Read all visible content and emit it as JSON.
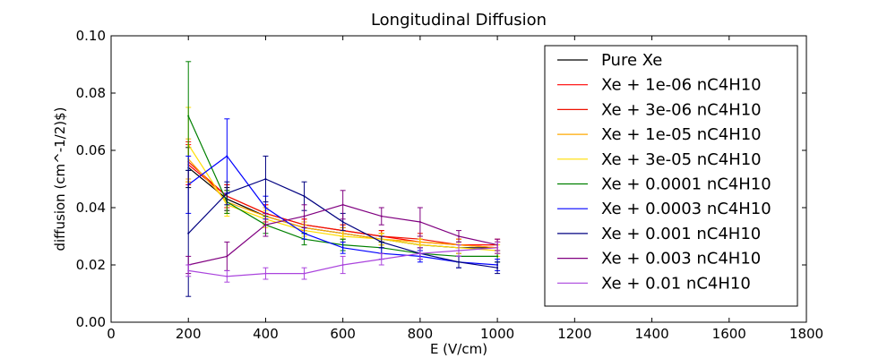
{
  "chart_data": {
    "type": "line",
    "title": "Longitudinal Diffusion",
    "xlabel": "E (V/cm)",
    "ylabel": "diffusion (cm^-1/2)$)",
    "xlim": [
      0,
      1800
    ],
    "ylim": [
      0.0,
      0.1
    ],
    "xticks": [
      "0",
      "200",
      "400",
      "600",
      "800",
      "1000",
      "1200",
      "1400",
      "1600",
      "1800"
    ],
    "yticks": [
      "0.00",
      "0.02",
      "0.04",
      "0.06",
      "0.08",
      "0.10"
    ],
    "grid": false,
    "legend_position": "top-right",
    "x": [
      200,
      300,
      400,
      500,
      600,
      700,
      800,
      900,
      1000
    ],
    "series": [
      {
        "name": "Pure Xe",
        "color": "#000000",
        "values": [
          0.054,
          0.043,
          0.037,
          0.033,
          0.031,
          0.029,
          0.027,
          0.026,
          0.026
        ],
        "errors": [
          0.007,
          0.004,
          0.003,
          0.002,
          0.002,
          0.002,
          0.002,
          0.002,
          0.002
        ]
      },
      {
        "name": "Xe + 1e-06 nC4H10",
        "color": "#ff0000",
        "values": [
          0.055,
          0.044,
          0.038,
          0.034,
          0.032,
          0.03,
          0.028,
          0.027,
          0.027
        ],
        "errors": [
          0.007,
          0.004,
          0.003,
          0.002,
          0.002,
          0.002,
          0.002,
          0.002,
          0.002
        ]
      },
      {
        "name": "Xe + 3e-06 nC4H10",
        "color": "#ee1100",
        "values": [
          0.056,
          0.044,
          0.038,
          0.034,
          0.032,
          0.03,
          0.029,
          0.027,
          0.026
        ],
        "errors": [
          0.007,
          0.004,
          0.003,
          0.002,
          0.002,
          0.002,
          0.002,
          0.002,
          0.002
        ]
      },
      {
        "name": "Xe + 1e-05 nC4H10",
        "color": "#ffaa00",
        "values": [
          0.057,
          0.042,
          0.037,
          0.033,
          0.031,
          0.029,
          0.028,
          0.027,
          0.026
        ],
        "errors": [
          0.007,
          0.004,
          0.003,
          0.002,
          0.002,
          0.002,
          0.002,
          0.002,
          0.002
        ]
      },
      {
        "name": "Xe + 3e-05 nC4H10",
        "color": "#ffdd00",
        "values": [
          0.062,
          0.041,
          0.036,
          0.032,
          0.03,
          0.029,
          0.027,
          0.026,
          0.025
        ],
        "errors": [
          0.013,
          0.004,
          0.003,
          0.002,
          0.002,
          0.002,
          0.002,
          0.002,
          0.002
        ]
      },
      {
        "name": "Xe + 0.0001 nC4H10",
        "color": "#008000",
        "values": [
          0.072,
          0.042,
          0.034,
          0.029,
          0.027,
          0.026,
          0.024,
          0.023,
          0.023
        ],
        "errors": [
          0.019,
          0.004,
          0.003,
          0.002,
          0.002,
          0.002,
          0.002,
          0.002,
          0.002
        ]
      },
      {
        "name": "Xe + 0.0003 nC4H10",
        "color": "#0000ff",
        "values": [
          0.048,
          0.058,
          0.04,
          0.031,
          0.026,
          0.024,
          0.023,
          0.021,
          0.02
        ],
        "errors": [
          0.01,
          0.013,
          0.004,
          0.002,
          0.002,
          0.002,
          0.002,
          0.002,
          0.002
        ]
      },
      {
        "name": "Xe + 0.001 nC4H10",
        "color": "#000080",
        "values": [
          0.031,
          0.045,
          0.05,
          0.044,
          0.035,
          0.028,
          0.024,
          0.021,
          0.019
        ],
        "errors": [
          0.022,
          0.004,
          0.008,
          0.005,
          0.003,
          0.002,
          0.002,
          0.002,
          0.002
        ]
      },
      {
        "name": "Xe + 0.003 nC4H10",
        "color": "#800080",
        "values": [
          0.02,
          0.023,
          0.034,
          0.037,
          0.041,
          0.037,
          0.035,
          0.03,
          0.027
        ],
        "errors": [
          0.003,
          0.005,
          0.004,
          0.004,
          0.005,
          0.003,
          0.005,
          0.002,
          0.002
        ]
      },
      {
        "name": "Xe + 0.01 nC4H10",
        "color": "#aa44dd",
        "values": [
          0.018,
          0.016,
          0.017,
          0.017,
          0.02,
          0.022,
          0.024,
          0.025,
          0.026
        ],
        "errors": [
          0.002,
          0.002,
          0.002,
          0.002,
          0.003,
          0.002,
          0.002,
          0.002,
          0.002
        ]
      }
    ]
  }
}
